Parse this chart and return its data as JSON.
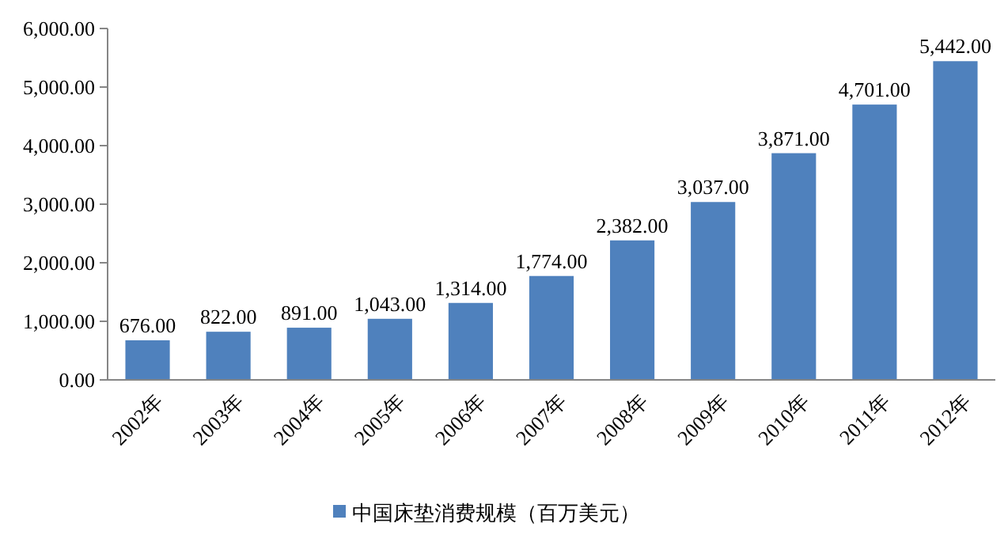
{
  "chart_data": {
    "type": "bar",
    "categories": [
      "2002年",
      "2003年",
      "2004年",
      "2005年",
      "2006年",
      "2007年",
      "2008年",
      "2009年",
      "2010年",
      "2011年",
      "2012年"
    ],
    "series": [
      {
        "name": "中国床垫消费规模（百万美元）",
        "color": "#4f81bd",
        "values": [
          676,
          822,
          891,
          1043,
          1314,
          1774,
          2382,
          3037,
          3871,
          4701,
          5442
        ],
        "value_labels": [
          "676.00",
          "822.00",
          "891.00",
          "1,043.00",
          "1,314.00",
          "1,774.00",
          "2,382.00",
          "3,037.00",
          "3,871.00",
          "4,701.00",
          "5,442.00"
        ]
      }
    ],
    "ylim": [
      0,
      6000
    ],
    "yticks": [
      {
        "value": 0,
        "label": "0.00"
      },
      {
        "value": 1000,
        "label": "1,000.00"
      },
      {
        "value": 2000,
        "label": "2,000.00"
      },
      {
        "value": 3000,
        "label": "3,000.00"
      },
      {
        "value": 4000,
        "label": "4,000.00"
      },
      {
        "value": 5000,
        "label": "5,000.00"
      },
      {
        "value": 6000,
        "label": "6,000.00"
      }
    ],
    "legend": "bottom"
  }
}
